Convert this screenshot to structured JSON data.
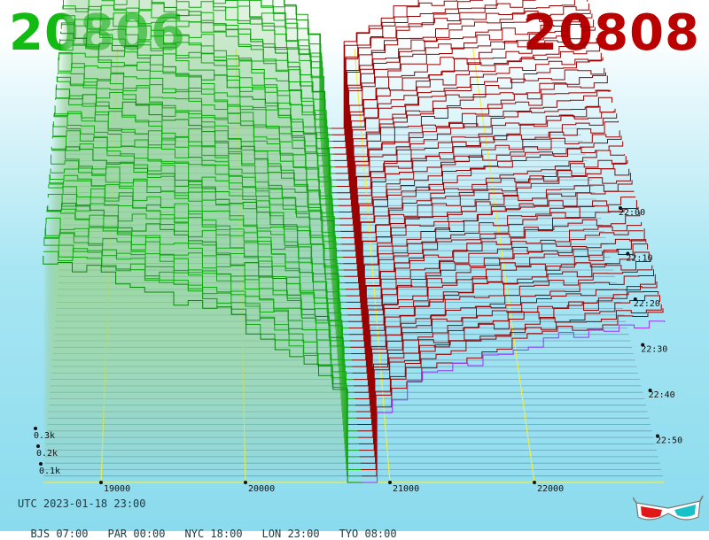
{
  "header": {
    "left_price": "20806",
    "right_price": "20808",
    "left_color": "#11bb11",
    "right_color": "#bb0000"
  },
  "footer": {
    "utc": "UTC 2023-01-18 23:00",
    "zones": [
      {
        "label": "BJS 07:00"
      },
      {
        "label": "PAR 00:00"
      },
      {
        "label": "NYC 18:00"
      },
      {
        "label": "LON 23:00"
      },
      {
        "label": "TYO 08:00"
      }
    ],
    "glasses_icon": "3d-glasses-icon"
  },
  "chart_data": {
    "type": "area",
    "price_axis": {
      "ticks": [
        "19000",
        "20000",
        "21000",
        "22000"
      ],
      "values": [
        19000,
        20000,
        21000,
        22000
      ],
      "range": [
        18600,
        22900
      ]
    },
    "time_axis": {
      "ticks": [
        "22:00",
        "22:10",
        "22:20",
        "22:30",
        "22:40",
        "22:50"
      ],
      "range_minutes": [
        0,
        60
      ]
    },
    "volume_axis": {
      "ticks": [
        "0.1k",
        "0.2k",
        "0.3k"
      ],
      "values": [
        100,
        200,
        300
      ]
    },
    "mid_price": 20807,
    "bid_color": "#11aa11",
    "ask_color": "#990000",
    "grid_color": "#eeee44",
    "snapshots": 56
  }
}
